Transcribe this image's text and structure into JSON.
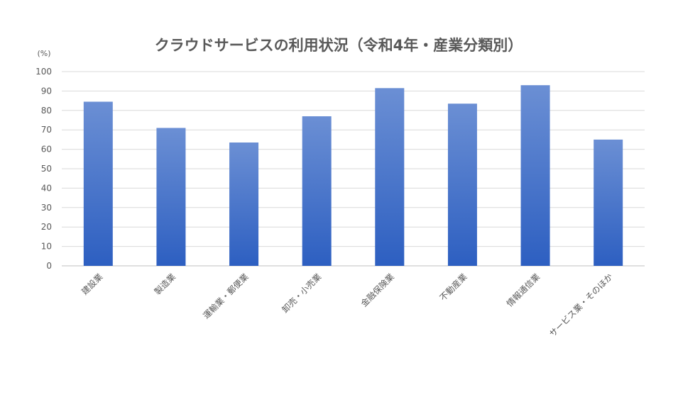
{
  "chart_data": {
    "type": "bar",
    "title": "クラウドサービスの利用状況（令和4年・産業分類別）",
    "ylabel": "(%)",
    "xlabel": "",
    "ylim": [
      0,
      100
    ],
    "yticks": [
      0,
      10,
      20,
      30,
      40,
      50,
      60,
      70,
      80,
      90,
      100
    ],
    "grid": true,
    "legend": "none",
    "categories": [
      "建設業",
      "製造業",
      "運輸業・郵便業",
      "卸売・小売業",
      "金融保険業",
      "不動産業",
      "情報通信業",
      "サービス業・そのほか"
    ],
    "values": [
      84.5,
      71,
      63.5,
      77,
      91.5,
      83.5,
      93,
      65
    ],
    "colors": {
      "bar_top": "#6b8fd4",
      "bar_bottom": "#2d5fc1",
      "text": "#595959",
      "grid": "#d9d9d9"
    }
  }
}
